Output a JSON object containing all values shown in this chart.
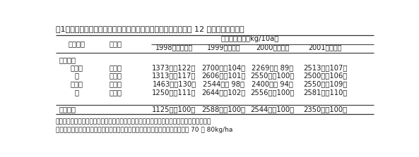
{
  "title": "表1　異なる栽培様式における水稲収量の年次変動　（農家圃場 12 カ所、平均収量）",
  "header_yield": "水稲籾収量　（kg/10a）",
  "year_labels": [
    "1998（干ばつ）",
    "1999（洪水）",
    "2000（洪水）",
    "2001（通常）"
  ],
  "section1": "乾田直播",
  "col0": [
    "不耕起",
    "〃",
    "耕　起",
    "〃"
  ],
  "col1": [
    "条　播",
    "散　播",
    "条　播",
    "散　播"
  ],
  "vals": [
    [
      "1373　（122）",
      "2700　（104）",
      "2269　（ 89）",
      "2513　（107）"
    ],
    [
      "1313　（117）",
      "2606　（101）",
      "2550　（100）",
      "2500　（106）"
    ],
    [
      "1463　（130）",
      "2544　（ 98）",
      "2400　（ 94）",
      "2550　（109）"
    ],
    [
      "1250　（111）",
      "2644　（102）",
      "2556　（100）",
      "2581　（110）"
    ]
  ],
  "section2": "移植栽培",
  "transplant_vals": [
    "1125　（100）",
    "2588　（100）",
    "2544　（100）",
    "2350　（100）"
  ],
  "footnote1": "注）　乾田直播・不耕起：非選択性除草剤処理後播種、耕起：ディスクプラウ耕整地後播種",
  "footnote2": "　　　散播：手でバラマキ播種、条播：不耕起播種機による作溝播種、播種量 70 〜 80kg/ha",
  "bg_color": "#ffffff",
  "text_color": "#1a1a1a",
  "font_size_title": 8.0,
  "font_size_header": 7.2,
  "font_size_data": 7.2,
  "font_size_note": 6.5
}
